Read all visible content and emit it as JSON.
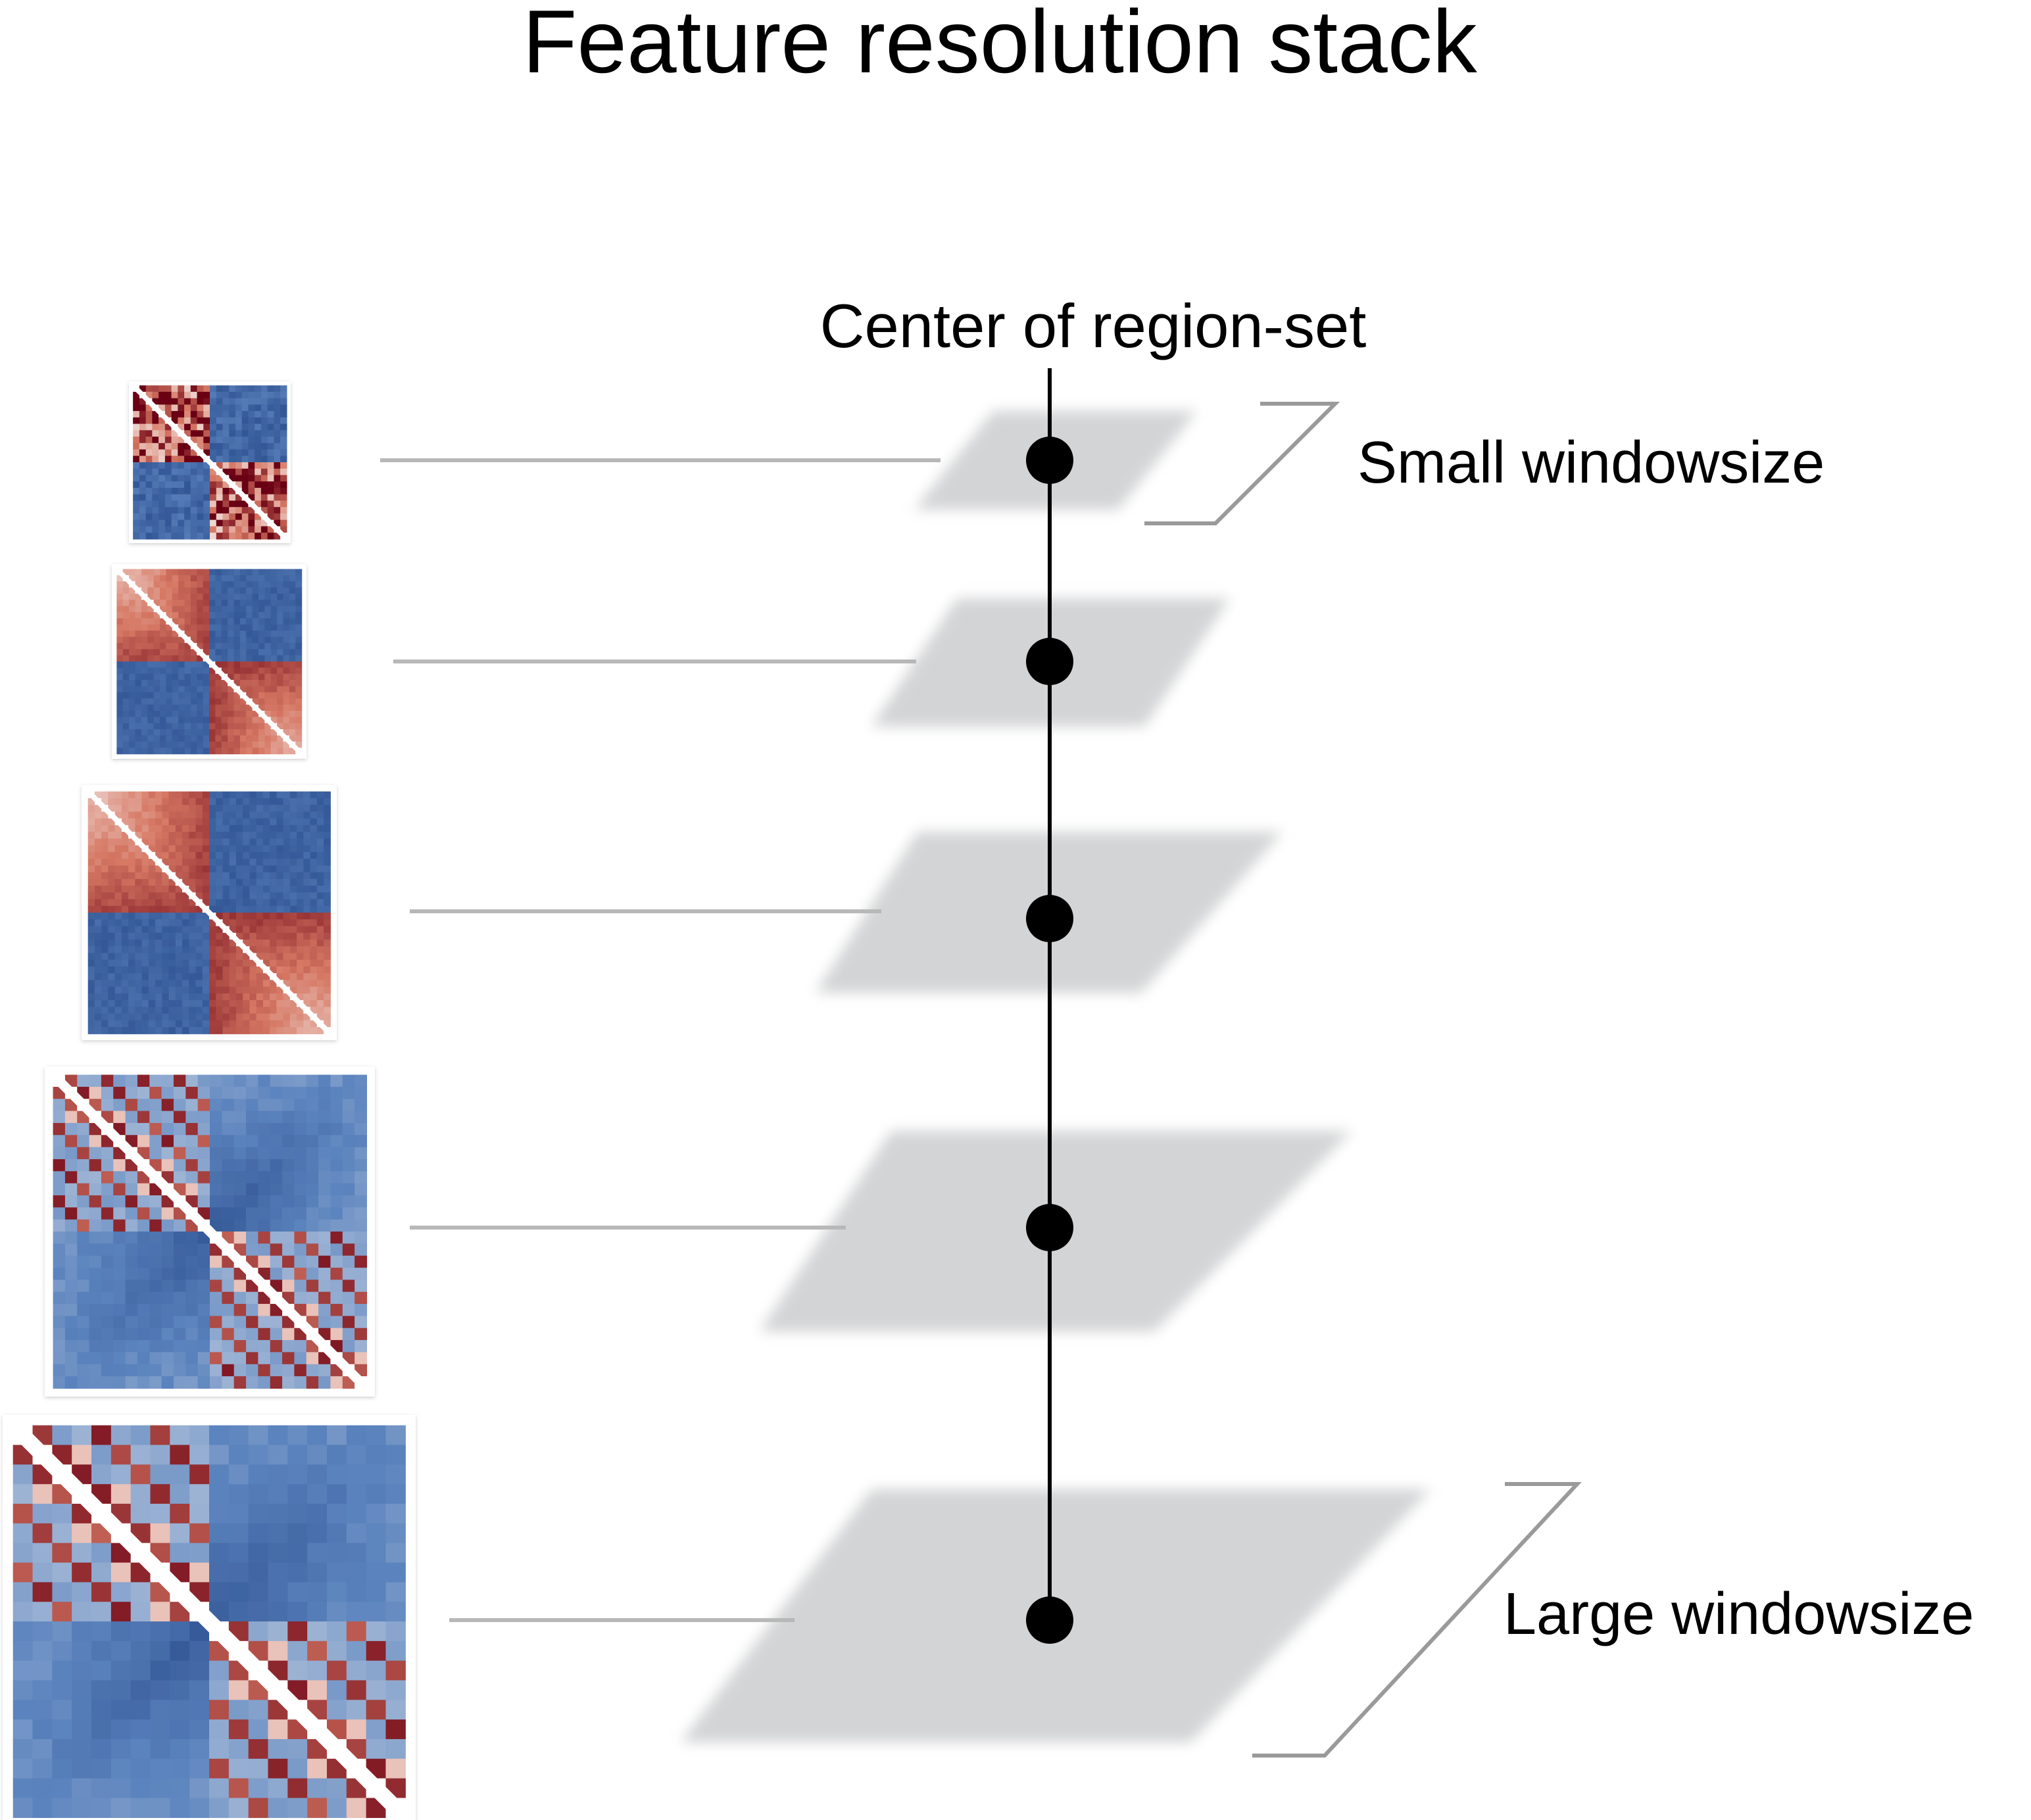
{
  "title": "Feature resolution stack",
  "axis_label": "Center of region-set",
  "annotations": {
    "small": "Small windowsize",
    "large": "Large windowsize"
  },
  "levels": [
    {
      "id": "level-1",
      "matrix_bins": 24,
      "pattern": "noisy"
    },
    {
      "id": "level-2",
      "matrix_bins": 30,
      "pattern": "tad"
    },
    {
      "id": "level-3",
      "matrix_bins": 36,
      "pattern": "tad"
    },
    {
      "id": "level-4",
      "matrix_bins": 26,
      "pattern": "coarse"
    },
    {
      "id": "level-5",
      "matrix_bins": 20,
      "pattern": "coarse"
    }
  ],
  "colors": {
    "text": "#000000",
    "connector": "#b8b8b8",
    "bracket": "#9a9a9a",
    "plane": "#d3d4d6",
    "axis": "#000000",
    "heat_low": "#2b4e8e",
    "heat_mid": "#f6f4f2",
    "heat_high": "#6a0013"
  }
}
